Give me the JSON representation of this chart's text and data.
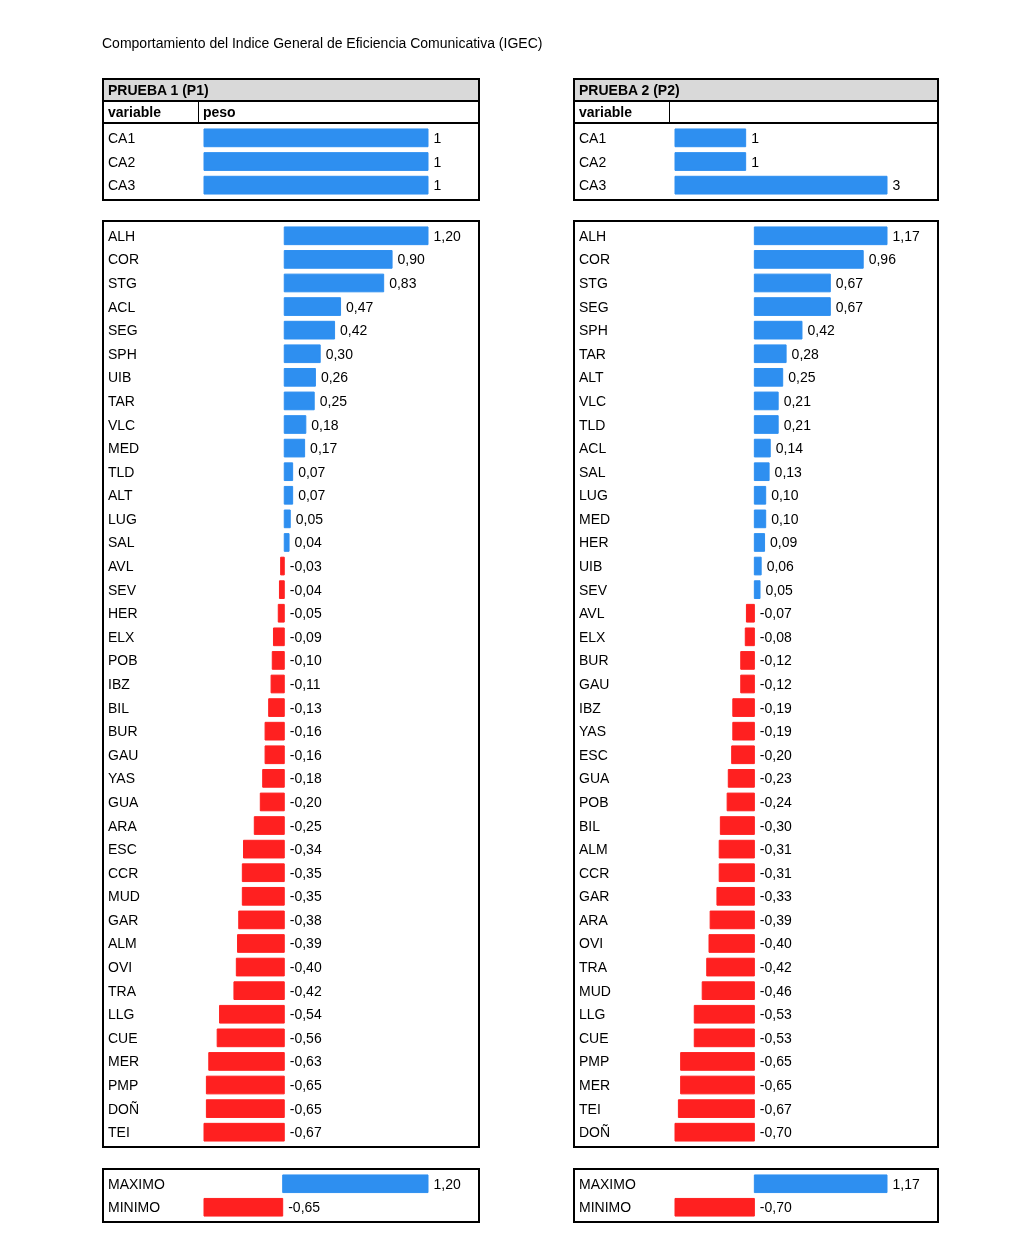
{
  "chart_data": [
    {
      "type": "bar",
      "orientation": "horizontal",
      "title": "Comportamiento del  Indice General de Eficiencia Comunicativa (IGEC)",
      "subtitle": "PRUEBA 1 (P1)",
      "ylabel": "variable",
      "xlabel": "peso",
      "categories": [
        "CA1",
        "CA2",
        "CA3"
      ],
      "values": [
        1,
        1,
        1
      ],
      "colors": [
        "#2e8ff0",
        "#2e8ff0",
        "#2e8ff0"
      ],
      "value_labels": [
        "1",
        "1",
        "1"
      ]
    },
    {
      "type": "bar",
      "orientation": "horizontal",
      "subtitle": "PRUEBA 2 (P2)",
      "ylabel": "variable",
      "categories": [
        "CA1",
        "CA2",
        "CA3"
      ],
      "values": [
        1,
        1,
        3
      ],
      "colors": [
        "#2e8ff0",
        "#2e8ff0",
        "#2e8ff0"
      ],
      "value_labels": [
        "1",
        "1",
        "3"
      ]
    },
    {
      "type": "bar",
      "orientation": "horizontal",
      "categories": [
        "ALH",
        "COR",
        "STG",
        "ACL",
        "SEG",
        "SPH",
        "UIB",
        "TAR",
        "VLC",
        "MED",
        "TLD",
        "ALT",
        "LUG",
        "SAL",
        "AVL",
        "SEV",
        "HER",
        "ELX",
        "POB",
        "IBZ",
        "BIL",
        "BUR",
        "GAU",
        "YAS",
        "GUA",
        "ARA",
        "ESC",
        "CCR",
        "MUD",
        "GAR",
        "ALM",
        "OVI",
        "TRA",
        "LLG",
        "CUE",
        "MER",
        "PMP",
        "DOÑ",
        "TEI"
      ],
      "values": [
        1.2,
        0.9,
        0.83,
        0.47,
        0.42,
        0.3,
        0.26,
        0.25,
        0.18,
        0.17,
        0.07,
        0.07,
        0.05,
        0.04,
        -0.03,
        -0.04,
        -0.05,
        -0.09,
        -0.1,
        -0.11,
        -0.13,
        -0.16,
        -0.16,
        -0.18,
        -0.2,
        -0.25,
        -0.34,
        -0.35,
        -0.35,
        -0.38,
        -0.39,
        -0.4,
        -0.42,
        -0.54,
        -0.56,
        -0.63,
        -0.65,
        -0.65,
        -0.67
      ],
      "colors": [
        "#2e8ff0",
        "#2e8ff0",
        "#2e8ff0",
        "#2e8ff0",
        "#2e8ff0",
        "#2e8ff0",
        "#2e8ff0",
        "#2e8ff0",
        "#2e8ff0",
        "#2e8ff0",
        "#2e8ff0",
        "#2e8ff0",
        "#2e8ff0",
        "#2e8ff0",
        "#ff2020",
        "#ff2020",
        "#ff2020",
        "#ff2020",
        "#ff2020",
        "#ff2020",
        "#ff2020",
        "#ff2020",
        "#ff2020",
        "#ff2020",
        "#ff2020",
        "#ff2020",
        "#ff2020",
        "#ff2020",
        "#ff2020",
        "#ff2020",
        "#ff2020",
        "#ff2020",
        "#ff2020",
        "#ff2020",
        "#ff2020",
        "#ff2020",
        "#ff2020",
        "#ff2020",
        "#ff2020"
      ],
      "value_labels": [
        "1,20",
        "0,90",
        "0,83",
        "0,47",
        "0,42",
        "0,30",
        "0,26",
        "0,25",
        "0,18",
        "0,17",
        "0,07",
        "0,07",
        "0,05",
        "0,04",
        "-0,03",
        "-0,04",
        "-0,05",
        "-0,09",
        "-0,10",
        "-0,11",
        "-0,13",
        "-0,16",
        "-0,16",
        "-0,18",
        "-0,20",
        "-0,25",
        "-0,34",
        "-0,35",
        "-0,35",
        "-0,38",
        "-0,39",
        "-0,40",
        "-0,42",
        "-0,54",
        "-0,56",
        "-0,63",
        "-0,65",
        "-0,65",
        "-0,67"
      ]
    },
    {
      "type": "bar",
      "orientation": "horizontal",
      "categories": [
        "ALH",
        "COR",
        "STG",
        "SEG",
        "SPH",
        "TAR",
        "ALT",
        "VLC",
        "TLD",
        "ACL",
        "SAL",
        "LUG",
        "MED",
        "HER",
        "UIB",
        "SEV",
        "AVL",
        "ELX",
        "BUR",
        "GAU",
        "IBZ",
        "YAS",
        "ESC",
        "GUA",
        "POB",
        "BIL",
        "ALM",
        "CCR",
        "GAR",
        "ARA",
        "OVI",
        "TRA",
        "MUD",
        "LLG",
        "CUE",
        "PMP",
        "MER",
        "TEI",
        "DOÑ"
      ],
      "values": [
        1.17,
        0.96,
        0.67,
        0.67,
        0.42,
        0.28,
        0.25,
        0.21,
        0.21,
        0.14,
        0.13,
        0.1,
        0.1,
        0.09,
        0.06,
        0.05,
        -0.07,
        -0.08,
        -0.12,
        -0.12,
        -0.19,
        -0.19,
        -0.2,
        -0.23,
        -0.24,
        -0.3,
        -0.31,
        -0.31,
        -0.33,
        -0.39,
        -0.4,
        -0.42,
        -0.46,
        -0.53,
        -0.53,
        -0.65,
        -0.65,
        -0.67,
        -0.7
      ],
      "colors": [
        "#2e8ff0",
        "#2e8ff0",
        "#2e8ff0",
        "#2e8ff0",
        "#2e8ff0",
        "#2e8ff0",
        "#2e8ff0",
        "#2e8ff0",
        "#2e8ff0",
        "#2e8ff0",
        "#2e8ff0",
        "#2e8ff0",
        "#2e8ff0",
        "#2e8ff0",
        "#2e8ff0",
        "#2e8ff0",
        "#ff2020",
        "#ff2020",
        "#ff2020",
        "#ff2020",
        "#ff2020",
        "#ff2020",
        "#ff2020",
        "#ff2020",
        "#ff2020",
        "#ff2020",
        "#ff2020",
        "#ff2020",
        "#ff2020",
        "#ff2020",
        "#ff2020",
        "#ff2020",
        "#ff2020",
        "#ff2020",
        "#ff2020",
        "#ff2020",
        "#ff2020",
        "#ff2020",
        "#ff2020"
      ],
      "value_labels": [
        "1,17",
        "0,96",
        "0,67",
        "0,67",
        "0,42",
        "0,28",
        "0,25",
        "0,21",
        "0,21",
        "0,14",
        "0,13",
        "0,10",
        "0,10",
        "0,09",
        "0,06",
        "0,05",
        "-0,07",
        "-0,08",
        "-0,12",
        "-0,12",
        "-0,19",
        "-0,19",
        "-0,20",
        "-0,23",
        "-0,24",
        "-0,30",
        "-0,31",
        "-0,31",
        "-0,33",
        "-0,39",
        "-0,40",
        "-0,42",
        "-0,46",
        "-0,53",
        "-0,53",
        "-0,65",
        "-0,65",
        "-0,67",
        "-0,70"
      ]
    },
    {
      "type": "bar",
      "orientation": "horizontal",
      "categories": [
        "MAXIMO",
        "MINIMO"
      ],
      "values": [
        1.2,
        -0.65
      ],
      "colors": [
        "#2e8ff0",
        "#ff2020"
      ],
      "value_labels": [
        "1,20",
        "-0,65"
      ]
    },
    {
      "type": "bar",
      "orientation": "horizontal",
      "categories": [
        "MAXIMO",
        "MINIMO"
      ],
      "values": [
        1.17,
        -0.7
      ],
      "colors": [
        "#2e8ff0",
        "#ff2020"
      ],
      "value_labels": [
        "1,17",
        "-0,70"
      ]
    }
  ]
}
